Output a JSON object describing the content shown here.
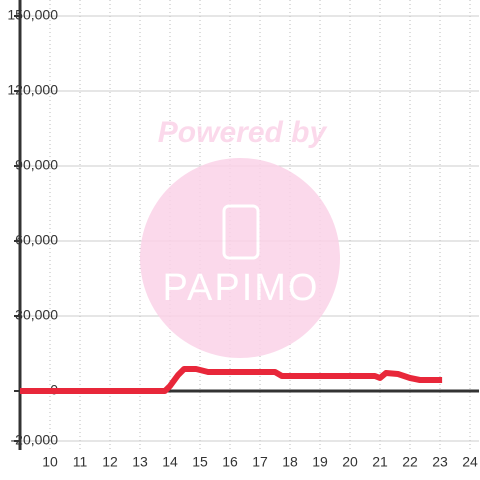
{
  "chart_data": {
    "type": "line",
    "watermark": {
      "title": "Powered by",
      "logo_text": "PAPIMO"
    },
    "x": [
      9,
      13.83,
      14,
      14.27,
      14.47,
      14.87,
      15.27,
      17.5,
      17.73,
      20.83,
      21,
      21.2,
      21.6,
      22,
      22.33,
      23.07
    ],
    "series": [
      {
        "color": "#e8273a",
        "values": [
          0,
          0,
          2000,
          6400,
          8800,
          8800,
          7600,
          7600,
          6000,
          6000,
          5200,
          7200,
          6800,
          5200,
          4400,
          4400
        ]
      }
    ],
    "xlim": [
      9,
      24.3
    ],
    "ylim": [
      -20000,
      150000
    ],
    "xticks": [
      10,
      11,
      12,
      13,
      14,
      15,
      16,
      17,
      18,
      19,
      20,
      21,
      22,
      23,
      24
    ],
    "yticks": [
      {
        "value": -20000,
        "label": "-20,000"
      },
      0,
      {
        "value": 30000,
        "label": "30,000"
      },
      {
        "value": 60000,
        "label": "60,000"
      },
      {
        "value": 90000,
        "label": "90,000"
      },
      {
        "value": 120000,
        "label": "120,000"
      },
      {
        "value": 150000,
        "label": "150,000"
      }
    ],
    "grid": true
  }
}
